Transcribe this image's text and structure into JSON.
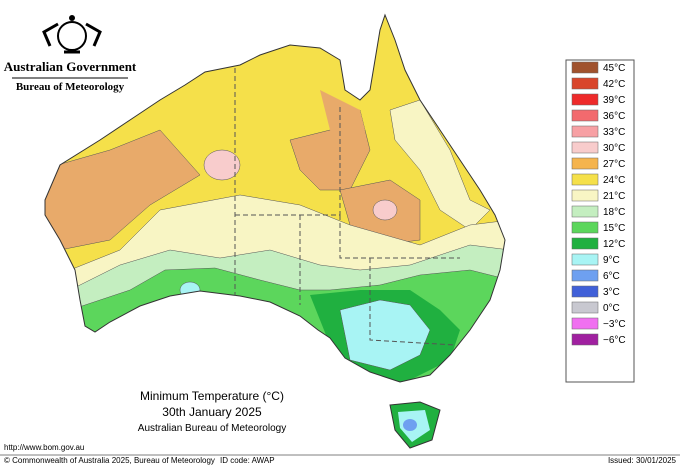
{
  "header": {
    "government": "Australian Government",
    "bureau": "Bureau of Meteorology"
  },
  "map": {
    "title": "Minimum Temperature (°C)",
    "date": "30th January 2025",
    "source": "Australian Bureau of Meteorology"
  },
  "legend": [
    {
      "label": "45°C",
      "color": "#a0522d"
    },
    {
      "label": "42°C",
      "color": "#d9462c"
    },
    {
      "label": "39°C",
      "color": "#ee2a2a"
    },
    {
      "label": "36°C",
      "color": "#f26a6e"
    },
    {
      "label": "33°C",
      "color": "#f7a0a4"
    },
    {
      "label": "30°C",
      "color": "#f8cccc"
    },
    {
      "label": "27°C",
      "color": "#f5b44e"
    },
    {
      "label": "24°C",
      "color": "#f5e04a"
    },
    {
      "label": "21°C",
      "color": "#f8f5c4"
    },
    {
      "label": "18°C",
      "color": "#c4eec0"
    },
    {
      "label": "15°C",
      "color": "#5cd65c"
    },
    {
      "label": "12°C",
      "color": "#20b040"
    },
    {
      "label": "9°C",
      "color": "#a8f4f4"
    },
    {
      "label": "6°C",
      "color": "#6ea0f0"
    },
    {
      "label": "3°C",
      "color": "#4060d8"
    },
    {
      "label": "0°C",
      "color": "#c8c8d0"
    },
    {
      "label": "−3°C",
      "color": "#f070f0"
    },
    {
      "label": "−6°C",
      "color": "#a020a0"
    }
  ],
  "footer": {
    "url": "http://www.bom.gov.au",
    "copyright": "© Commonwealth of Australia 2025, Bureau of Meteorology",
    "id_code": "ID code: AWAP",
    "issued": "Issued: 30/01/2025"
  }
}
